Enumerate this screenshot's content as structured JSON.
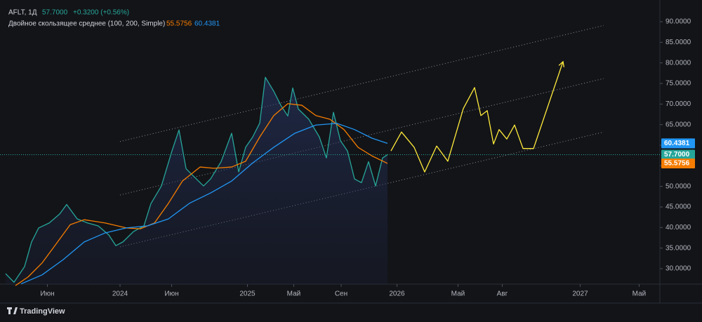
{
  "chart_data": {
    "type": "line",
    "title": "AFLT, 1Д",
    "change": "+0.3200 (+0.56%)",
    "indicator": "Двойное скользящее среднее (100, 200, Simple)",
    "xlim": [
      -11.4,
      51.27
    ],
    "ylim": [
      26.25,
      95.28
    ],
    "xticks": [
      {
        "value": -6.9,
        "label": "Июн"
      },
      {
        "value": 0,
        "label": "2024"
      },
      {
        "value": 4.9,
        "label": "Июн"
      },
      {
        "value": 12.1,
        "label": "2025"
      },
      {
        "value": 16.5,
        "label": "Май"
      },
      {
        "value": 21,
        "label": "Сен"
      },
      {
        "value": 26.3,
        "label": "2026"
      },
      {
        "value": 32.1,
        "label": "Май"
      },
      {
        "value": 36.3,
        "label": "Авг"
      },
      {
        "value": 43.7,
        "label": "2027"
      },
      {
        "value": 49.3,
        "label": "Май"
      }
    ],
    "yticks": [
      {
        "value": 30,
        "label": "30.0000"
      },
      {
        "value": 35,
        "label": "35.0000"
      },
      {
        "value": 40,
        "label": "40.0000"
      },
      {
        "value": 45,
        "label": "45.0000"
      },
      {
        "value": 50,
        "label": "50.0000"
      },
      {
        "value": 55,
        "label": "55.0000"
      },
      {
        "value": 60,
        "label": "60.0000"
      },
      {
        "value": 65,
        "label": "65.0000"
      },
      {
        "value": 70,
        "label": "70.0000"
      },
      {
        "value": 75,
        "label": "75.0000"
      },
      {
        "value": 80,
        "label": "80.0000"
      },
      {
        "value": 85,
        "label": "85.0000"
      },
      {
        "value": 90,
        "label": "90.0000"
      }
    ],
    "series": [
      {
        "color": "#26a69a",
        "area": true,
        "last": {
          "value": 57.7,
          "label": "57.7000"
        },
        "x": [
          -10.87,
          -10.07,
          -9.07,
          -8.4,
          -7.73,
          -6.73,
          -5.73,
          -5.07,
          -4.07,
          -3.07,
          -2.07,
          -1.07,
          -0.4,
          0.27,
          1.27,
          2.27,
          2.93,
          3.93,
          4.93,
          5.6,
          6.27,
          6.93,
          7.93,
          8.6,
          9.6,
          10.6,
          11.27,
          11.93,
          12.6,
          13.27,
          13.8,
          14.6,
          15.27,
          15.93,
          16.4,
          16.93,
          17.93,
          18.93,
          19.6,
          20.27,
          20.93,
          21.6,
          22.27,
          22.93,
          23.6,
          24.27,
          24.93,
          25.4
        ],
        "values": [
          28.8,
          26.7,
          30.5,
          36.5,
          39.9,
          41.1,
          43.3,
          45.6,
          42.1,
          41.1,
          40.4,
          38.2,
          35.6,
          36.5,
          39.0,
          40.4,
          45.8,
          50.1,
          58.6,
          63.7,
          54.3,
          52.6,
          50.1,
          51.8,
          56.0,
          62.9,
          53.5,
          59.5,
          62.0,
          65.4,
          76.5,
          73.1,
          69.7,
          67.1,
          73.9,
          68.8,
          66.3,
          62.0,
          56.9,
          68.0,
          61.1,
          58.6,
          51.8,
          50.9,
          56.0,
          50.1,
          56.9,
          57.7
        ]
      },
      {
        "color": "#f57c00",
        "last": {
          "value": 55.5756,
          "label": "55.5756"
        },
        "x": [
          -9.93,
          -8.73,
          -7.4,
          -6.07,
          -4.73,
          -3.4,
          -1.4,
          0.6,
          1.93,
          3.27,
          4.6,
          5.93,
          7.6,
          8.93,
          10.6,
          11.93,
          13.27,
          14.6,
          15.93,
          17.27,
          18.6,
          19.93,
          21.27,
          22.6,
          23.93,
          25.4
        ],
        "values": [
          25.9,
          28.0,
          31.4,
          36.0,
          40.7,
          41.9,
          41.1,
          39.9,
          39.7,
          41.1,
          45.9,
          51.3,
          54.7,
          54.4,
          54.7,
          56.1,
          62.0,
          67.2,
          70.1,
          69.7,
          67.2,
          66.3,
          63.8,
          59.5,
          57.4,
          55.5756
        ]
      },
      {
        "color": "#2196f3",
        "last": {
          "value": 60.4381,
          "label": "60.4381"
        },
        "x": [
          -9.4,
          -7.4,
          -5.4,
          -3.4,
          -1.4,
          0.6,
          2.6,
          4.6,
          6.6,
          8.6,
          10.6,
          12.6,
          14.6,
          16.6,
          18.6,
          20.6,
          22.27,
          23.93,
          25.4
        ],
        "values": [
          26.3,
          28.5,
          32.2,
          36.5,
          38.7,
          39.9,
          40.4,
          42.1,
          45.9,
          48.4,
          51.3,
          55.7,
          59.5,
          62.9,
          64.9,
          65.3,
          63.8,
          61.7,
          60.4381
        ]
      },
      {
        "color": "#ffeb3b",
        "arrow": true,
        "x": [
          25.73,
          26.73,
          27.93,
          28.93,
          30.07,
          31.13,
          32.6,
          33.67,
          34.27,
          34.87,
          35.47,
          36.0,
          36.73,
          37.47,
          38.27,
          39.27,
          42.07
        ],
        "values": [
          58.6,
          63.2,
          59.5,
          53.5,
          59.8,
          56.1,
          68.9,
          74.0,
          67.2,
          68.4,
          60.3,
          63.8,
          61.5,
          64.9,
          59.2,
          59.2,
          80.3
        ]
      }
    ],
    "channels": [
      {
        "x": [
          0,
          45.93
        ],
        "values": [
          60.9,
          89.1
        ]
      },
      {
        "x": [
          0,
          45.93
        ],
        "values": [
          47.9,
          76.2
        ]
      },
      {
        "x": [
          0,
          45.93
        ],
        "values": [
          35.3,
          63.2
        ]
      }
    ]
  },
  "footer": {
    "brand": "TradingView"
  }
}
